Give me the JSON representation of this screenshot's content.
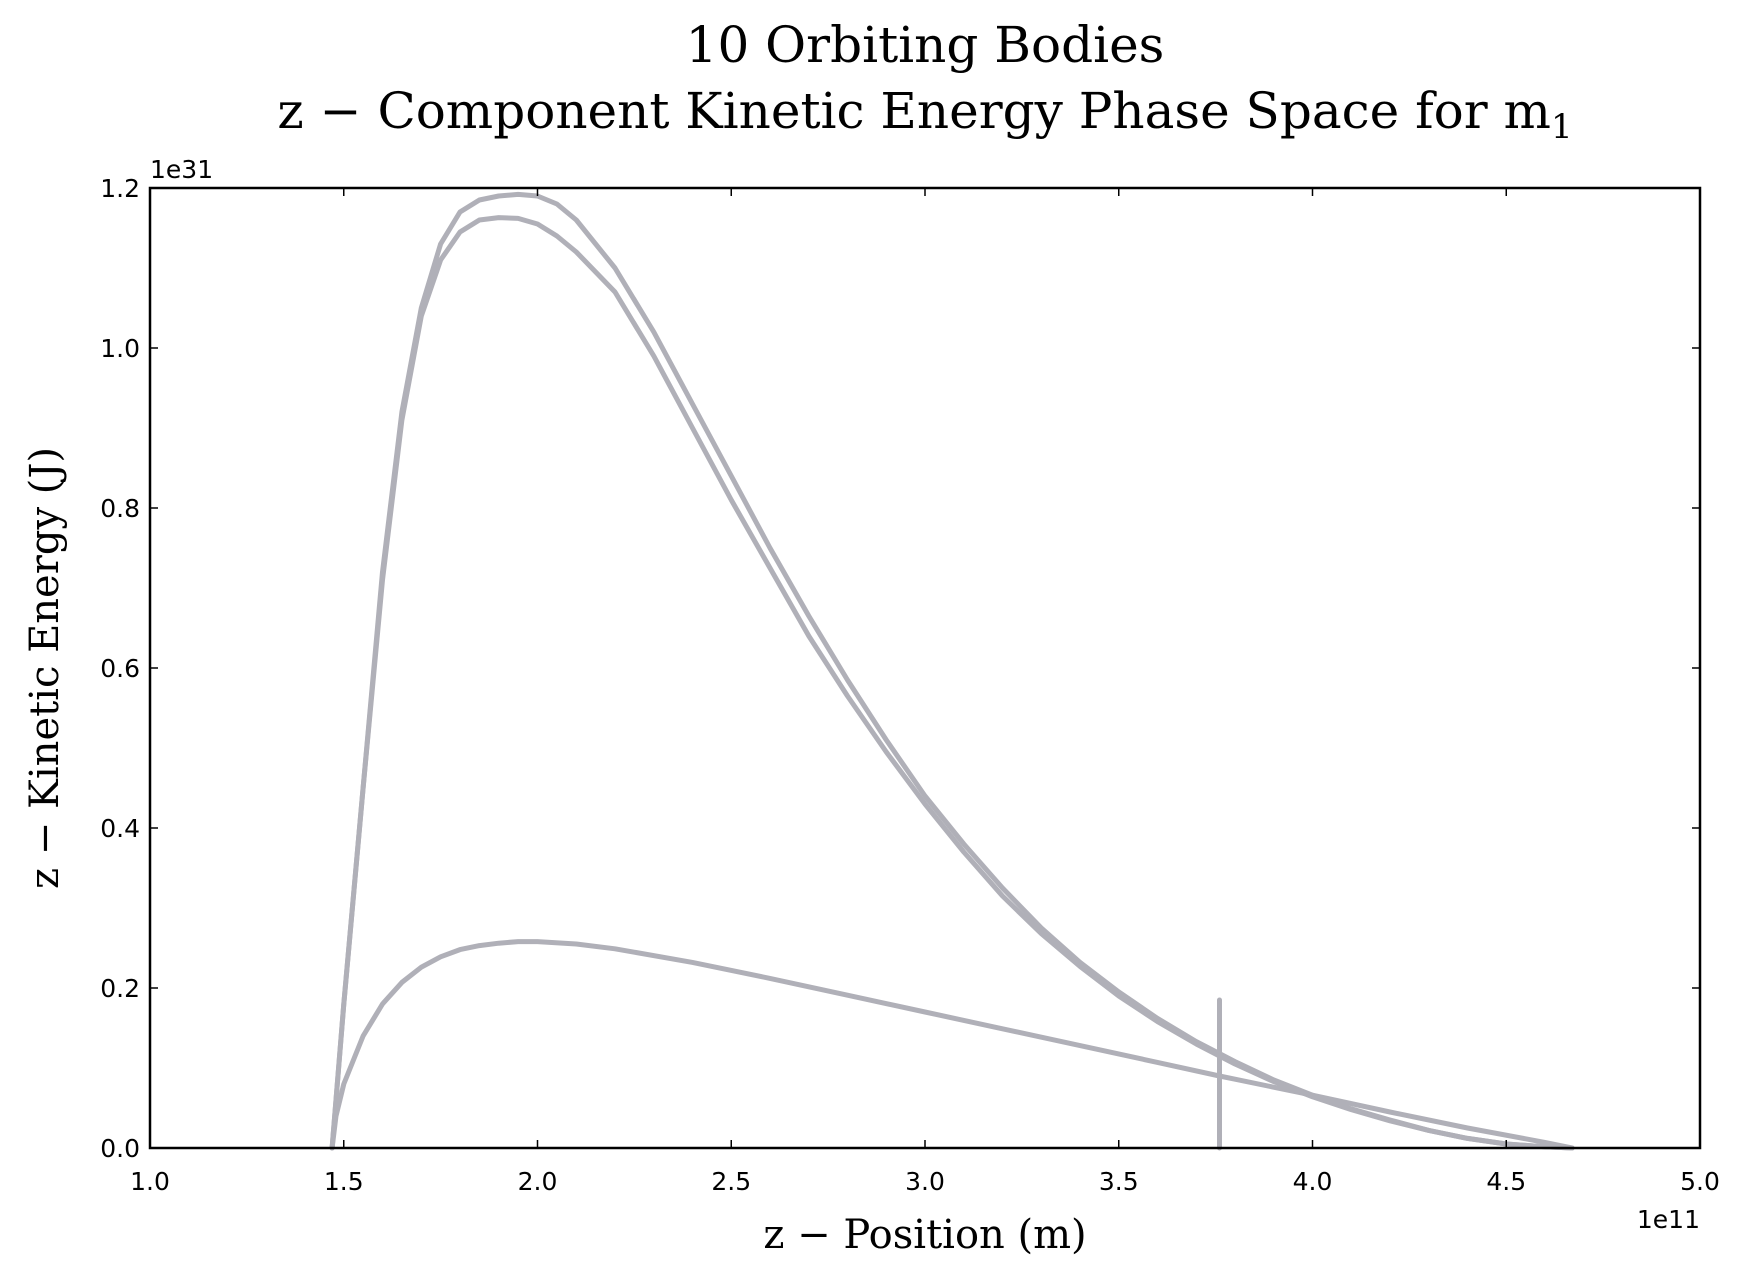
{
  "chart_data": {
    "type": "line",
    "title": "10 Orbiting Bodies",
    "subtitle": "z − Component Kinetic Energy Phase Space for m",
    "subtitle_subscript": "1",
    "xlabel": "z − Position (m)",
    "ylabel": "z − Kinetic Energy (J)",
    "x_offset_label": "1e11",
    "y_offset_label": "1e31",
    "xlim": [
      1.0,
      5.0
    ],
    "ylim": [
      0.0,
      1.2
    ],
    "x_ticks": [
      "1.0",
      "1.5",
      "2.0",
      "2.5",
      "3.0",
      "3.5",
      "4.0",
      "4.5",
      "5.0"
    ],
    "y_ticks": [
      "0.0",
      "0.2",
      "0.4",
      "0.6",
      "0.8",
      "1.0",
      "1.2"
    ],
    "grid": false,
    "line_color": "#b0b0b8",
    "series": [
      {
        "x": [
          1.47,
          1.5,
          1.55,
          1.6,
          1.65,
          1.7,
          1.75,
          1.8,
          1.85,
          1.9,
          1.95,
          2.0,
          2.05,
          2.1,
          2.2,
          2.3,
          2.4,
          2.5,
          2.6,
          2.7,
          2.8,
          2.9,
          3.0,
          3.1,
          3.2,
          3.3,
          3.4,
          3.5,
          3.6,
          3.7,
          3.8,
          3.9,
          4.0,
          4.1,
          4.2,
          4.3,
          4.4,
          4.5,
          4.6,
          4.67
        ],
        "y": [
          0.0,
          0.18,
          0.45,
          0.72,
          0.92,
          1.05,
          1.13,
          1.17,
          1.185,
          1.19,
          1.192,
          1.19,
          1.18,
          1.16,
          1.1,
          1.02,
          0.93,
          0.84,
          0.75,
          0.665,
          0.585,
          0.51,
          0.44,
          0.38,
          0.325,
          0.275,
          0.232,
          0.195,
          0.162,
          0.133,
          0.108,
          0.085,
          0.066,
          0.049,
          0.035,
          0.022,
          0.012,
          0.005,
          0.0015,
          0.0
        ]
      },
      {
        "x": [
          1.47,
          1.5,
          1.55,
          1.6,
          1.65,
          1.7,
          1.75,
          1.8,
          1.85,
          1.9,
          1.95,
          2.0,
          2.05,
          2.1,
          2.2,
          2.3,
          2.4,
          2.5,
          2.6,
          2.7,
          2.8,
          2.9,
          3.0,
          3.1,
          3.2,
          3.3,
          3.4,
          3.5,
          3.6,
          3.7,
          3.8,
          3.9,
          4.0,
          4.1,
          4.2,
          4.3,
          4.4,
          4.5,
          4.6,
          4.67
        ],
        "y": [
          0.0,
          0.18,
          0.45,
          0.71,
          0.91,
          1.04,
          1.11,
          1.145,
          1.16,
          1.163,
          1.162,
          1.155,
          1.14,
          1.12,
          1.07,
          0.99,
          0.9,
          0.81,
          0.725,
          0.64,
          0.565,
          0.495,
          0.43,
          0.37,
          0.315,
          0.268,
          0.227,
          0.19,
          0.158,
          0.13,
          0.105,
          0.083,
          0.064,
          0.048,
          0.034,
          0.022,
          0.012,
          0.005,
          0.0015,
          0.0
        ]
      },
      {
        "x": [
          1.47,
          1.48,
          1.5,
          1.55,
          1.6,
          1.65,
          1.7,
          1.75,
          1.8,
          1.85,
          1.9,
          1.95,
          2.0,
          2.1,
          2.2,
          2.4,
          2.6,
          2.8,
          3.0,
          3.2,
          3.4,
          3.6,
          3.76,
          3.8,
          4.0,
          4.2,
          4.4,
          4.6,
          4.67
        ],
        "y": [
          0.0,
          0.04,
          0.08,
          0.14,
          0.18,
          0.207,
          0.226,
          0.239,
          0.248,
          0.253,
          0.256,
          0.258,
          0.258,
          0.255,
          0.249,
          0.232,
          0.212,
          0.191,
          0.17,
          0.149,
          0.128,
          0.107,
          0.09,
          0.086,
          0.066,
          0.045,
          0.025,
          0.007,
          0.0
        ]
      },
      {
        "x": [
          3.76,
          3.76
        ],
        "y": [
          0.0,
          0.185
        ]
      }
    ]
  }
}
